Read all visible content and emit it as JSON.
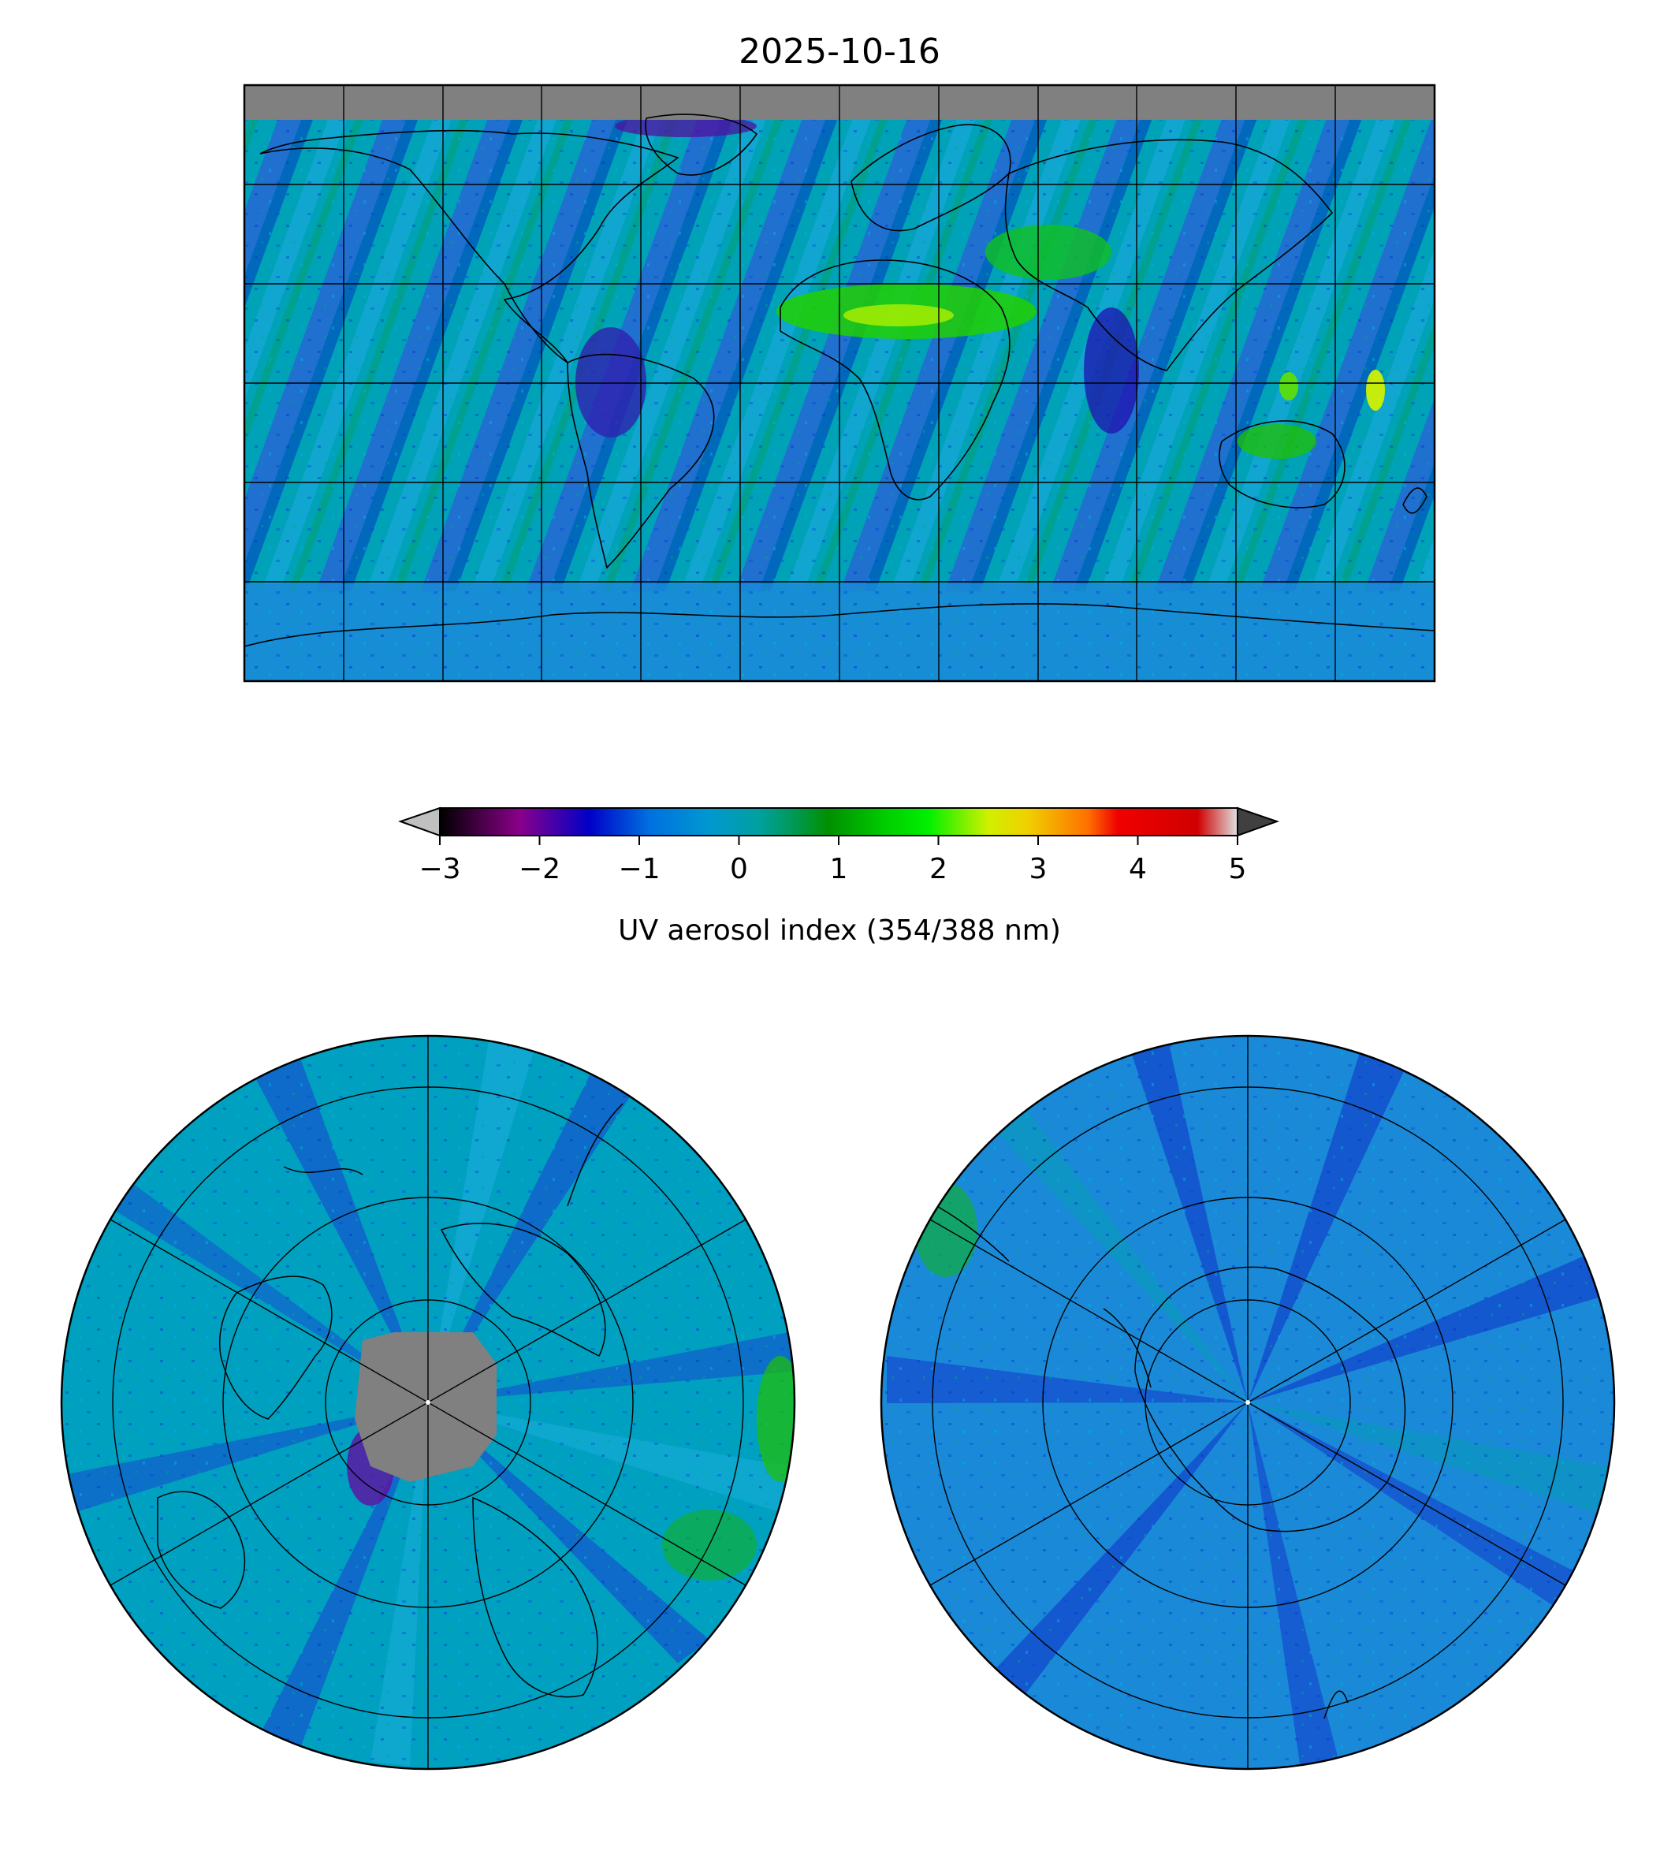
{
  "figure": {
    "title": "2025-10-16"
  },
  "colorbar": {
    "label": "UV aerosol index (354/388 nm)",
    "range": [
      -3,
      5
    ],
    "ticks": [
      {
        "value": -3,
        "label": "−3"
      },
      {
        "value": -2,
        "label": "−2"
      },
      {
        "value": -1,
        "label": "−1"
      },
      {
        "value": 0,
        "label": "0"
      },
      {
        "value": 1,
        "label": "1"
      },
      {
        "value": 2,
        "label": "2"
      },
      {
        "value": 3,
        "label": "3"
      },
      {
        "value": 4,
        "label": "4"
      },
      {
        "value": 5,
        "label": "5"
      }
    ],
    "extend": "both",
    "under_color": "#c0c0c0",
    "over_color": "#404040",
    "stops": [
      {
        "value": -3.0,
        "color": "#000000"
      },
      {
        "value": -2.2,
        "color": "#8a008a"
      },
      {
        "value": -1.5,
        "color": "#0000c8"
      },
      {
        "value": -0.9,
        "color": "#0070e0"
      },
      {
        "value": -0.3,
        "color": "#0098d0"
      },
      {
        "value": 0.2,
        "color": "#00a0a0"
      },
      {
        "value": 0.5,
        "color": "#009a60"
      },
      {
        "value": 0.9,
        "color": "#009000"
      },
      {
        "value": 1.5,
        "color": "#00d000"
      },
      {
        "value": 1.9,
        "color": "#00f000"
      },
      {
        "value": 2.5,
        "color": "#d0f000"
      },
      {
        "value": 2.9,
        "color": "#f0d000"
      },
      {
        "value": 3.5,
        "color": "#ff7000"
      },
      {
        "value": 3.8,
        "color": "#f00000"
      },
      {
        "value": 4.6,
        "color": "#d00000"
      },
      {
        "value": 5.0,
        "color": "#e0e0e0"
      }
    ]
  },
  "maps": {
    "global": {
      "projection": "equirectangular",
      "no_data_color": "#808080",
      "background_color": "#00a0c8"
    },
    "north": {
      "projection": "north polar stereographic",
      "no_data_color": "#808080",
      "background_color": "#00a0c8"
    },
    "south": {
      "projection": "south polar stereographic",
      "background_color": "#1a8ad8"
    }
  }
}
